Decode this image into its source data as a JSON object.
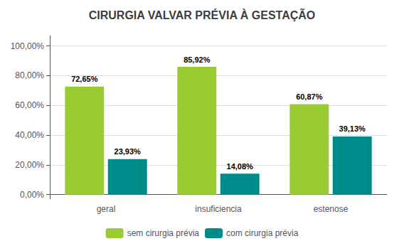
{
  "chart_data": {
    "type": "bar",
    "title": "CIRURGIA VALVAR PRÉVIA À GESTAÇÃO",
    "categories": [
      "geral",
      "insuficiencia",
      "estenose"
    ],
    "series": [
      {
        "name": "sem cirurgia prévia",
        "color": "#99cc33",
        "values": [
          72.65,
          85.92,
          60.87
        ],
        "value_labels": [
          "72,65%",
          "85,92%",
          "60,87%"
        ]
      },
      {
        "name": "com cirurgia prévia",
        "color": "#008b8b",
        "values": [
          23.93,
          14.08,
          39.13
        ],
        "value_labels": [
          "23,93%",
          "14,08%",
          "39,13%"
        ]
      }
    ],
    "ylim": [
      -3,
      107
    ],
    "yticks": [
      {
        "value": 0,
        "label": "0,00%"
      },
      {
        "value": 20,
        "label": "20,00%"
      },
      {
        "value": 40,
        "label": "40,00%"
      },
      {
        "value": 60,
        "label": "60,00%"
      },
      {
        "value": 80,
        "label": "80,00%"
      },
      {
        "value": 100,
        "label": "100,00%"
      }
    ],
    "grid": true,
    "legend": "bottom",
    "data_labels": true
  }
}
